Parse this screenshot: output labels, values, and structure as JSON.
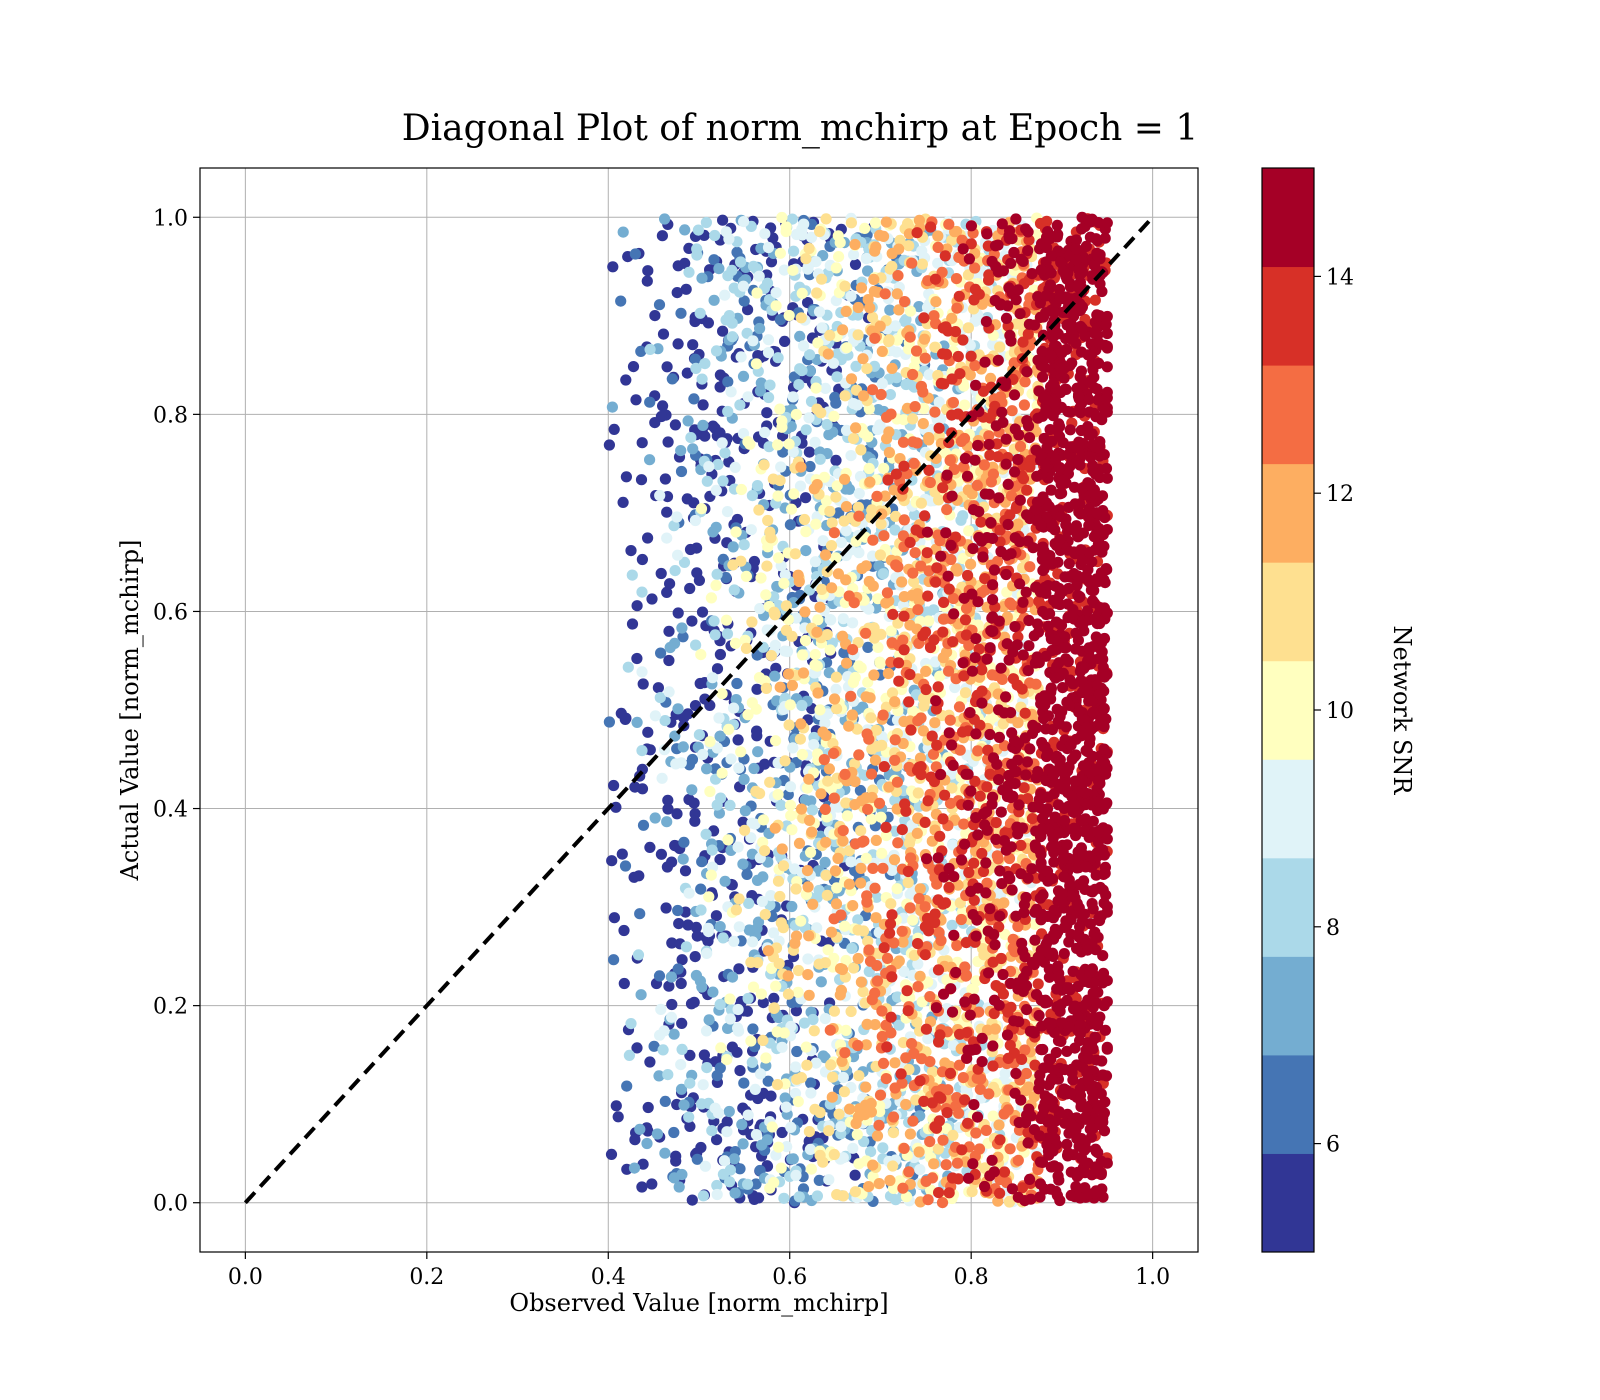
{
  "chart_data": {
    "type": "scatter",
    "title": "Diagonal Plot of norm_mchirp at Epoch = 1",
    "xlabel": "Observed Value [norm_mchirp]",
    "ylabel": "Actual Value [norm_mchirp]",
    "xlim": [
      -0.05,
      1.05
    ],
    "ylim": [
      -0.05,
      1.05
    ],
    "xticks": [
      "0.0",
      "0.2",
      "0.4",
      "0.6",
      "0.8",
      "1.0"
    ],
    "yticks": [
      "0.0",
      "0.2",
      "0.4",
      "0.6",
      "0.8",
      "1.0"
    ],
    "grid": true,
    "reference_line": {
      "style": "dashed",
      "color": "#000000",
      "from": [
        0.0,
        0.0
      ],
      "to": [
        1.0,
        1.0
      ]
    },
    "point_cloud": {
      "x_range": [
        0.4,
        0.95
      ],
      "y_range": [
        0.0,
        1.0
      ],
      "note_trend": "higher Network SNR concentrated at larger observed values (0.85-0.95)"
    },
    "colorbar": {
      "label": "Network SNR",
      "range": [
        5,
        15
      ],
      "ticks": [
        "6",
        "8",
        "10",
        "12",
        "14"
      ],
      "colors": [
        "#313695",
        "#4575b4",
        "#74add1",
        "#abd9e9",
        "#e0f3f8",
        "#ffffbf",
        "#fee090",
        "#fdae61",
        "#f46d43",
        "#d73027",
        "#a50026"
      ]
    }
  }
}
